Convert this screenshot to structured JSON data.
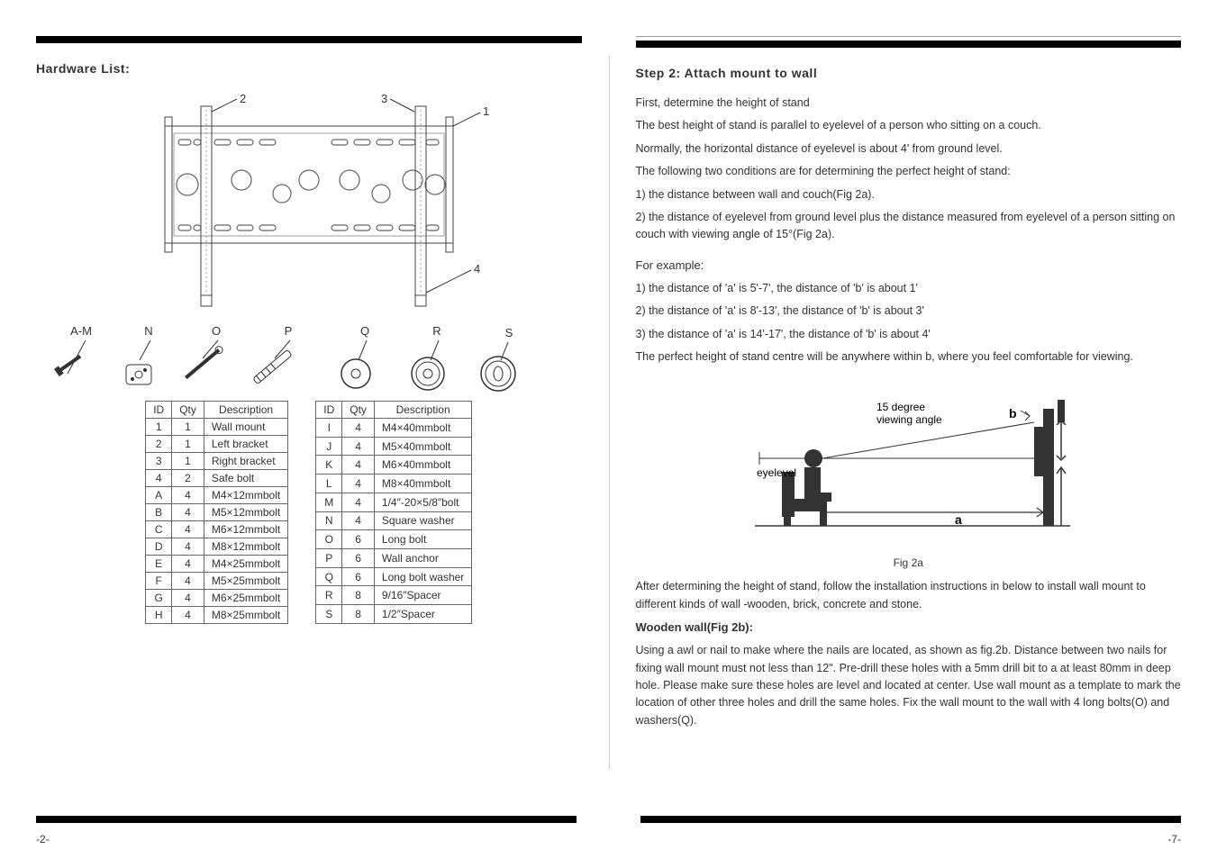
{
  "left": {
    "title": "Hardware List:",
    "table1": {
      "headers": [
        "ID",
        "Qty",
        "Description"
      ],
      "rows": [
        [
          "1",
          "1",
          "Wall mount"
        ],
        [
          "2",
          "1",
          "Left bracket"
        ],
        [
          "3",
          "1",
          "Right bracket"
        ],
        [
          "4",
          "2",
          "Safe bolt"
        ],
        [
          "A",
          "4",
          "M4×12mmbolt"
        ],
        [
          "B",
          "4",
          "M5×12mmbolt"
        ],
        [
          "C",
          "4",
          "M6×12mmbolt"
        ],
        [
          "D",
          "4",
          "M8×12mmbolt"
        ],
        [
          "E",
          "4",
          "M4×25mmbolt"
        ],
        [
          "F",
          "4",
          "M5×25mmbolt"
        ],
        [
          "G",
          "4",
          "M6×25mmbolt"
        ],
        [
          "H",
          "4",
          "M8×25mmbolt"
        ]
      ]
    },
    "table2": {
      "headers": [
        "ID",
        "Qty",
        "Description"
      ],
      "rows": [
        [
          "I",
          "4",
          "M4×40mmbolt"
        ],
        [
          "J",
          "4",
          "M5×40mmbolt"
        ],
        [
          "K",
          "4",
          "M6×40mmbolt"
        ],
        [
          "L",
          "4",
          "M8×40mmbolt"
        ],
        [
          "M",
          "4",
          "1/4″-20×5/8″bolt"
        ],
        [
          "N",
          "4",
          "Square washer"
        ],
        [
          "O",
          "6",
          "Long bolt"
        ],
        [
          "P",
          "6",
          "Wall anchor"
        ],
        [
          "Q",
          "6",
          "Long bolt washer"
        ],
        [
          "R",
          "8",
          "9/16″Spacer"
        ],
        [
          "S",
          "8",
          "1/2″Spacer"
        ]
      ]
    },
    "part_labels": [
      "A-M",
      "N",
      "O",
      "P",
      "Q",
      "R",
      "S"
    ],
    "callouts": {
      "c1": "1",
      "c2": "2",
      "c3": "3",
      "c4": "4"
    },
    "page": "-2-"
  },
  "right": {
    "title": "Step 2: Attach mount to wall",
    "p1": "First, determine the  height of stand",
    "p2": "The best  height of stand is parallel to eyelevel of a person who sitting on a couch.",
    "p3": "Normally, the horizontal distance of eyelevel is about 4' from ground level.",
    "p4": "The following two conditions are for determining the perfect height of stand:",
    "l1": "1)   the  distance between wall and couch(Fig 2a).",
    "l2": "2)   the  distance of eyelevel from ground level plus the distance measured from eyelevel of a person sitting on couch with viewing angle of 15°(Fig 2a).",
    "ex_h": "For example:",
    "e1": "1)   the  distance of 'a' is 5'-7', the distance of 'b' is about 1'",
    "e2": "2)   the  distance of 'a' is 8'-13', the distance of 'b' is about 3'",
    "e3": "3)   the  distance of 'a' is 14'-17', the distance of 'b' is about 4'",
    "e4": "The perfect height of stand centre will be anywhere within b, where you feel comfortable for viewing.",
    "fig": {
      "angle_label": "15 degree\nviewing angle",
      "eyelevel": "eyelevel",
      "a": "a",
      "b": "b",
      "caption": "Fig  2a"
    },
    "after": "After determining the height of stand, follow the installation instructions in below to install wall mount to different kinds of wall -wooden, brick, concrete and stone.",
    "wood_h": "Wooden wall(Fig 2b):",
    "wood_p": "Using a awl or nail to make where the nails are located, as shown as fig.2b. Distance between two  nails for fixing wall mount must not less than 12\". Pre-drill these holes with a 5mm drill  bit to a at least 80mm in deep hole. Please make sure these holes are level and located at center. Use wall mount as a template to mark the location of other three holes and drill the same holes. Fix the wall mount to the wall with 4 long bolts(O) and washers(Q).",
    "page": "-7-"
  }
}
